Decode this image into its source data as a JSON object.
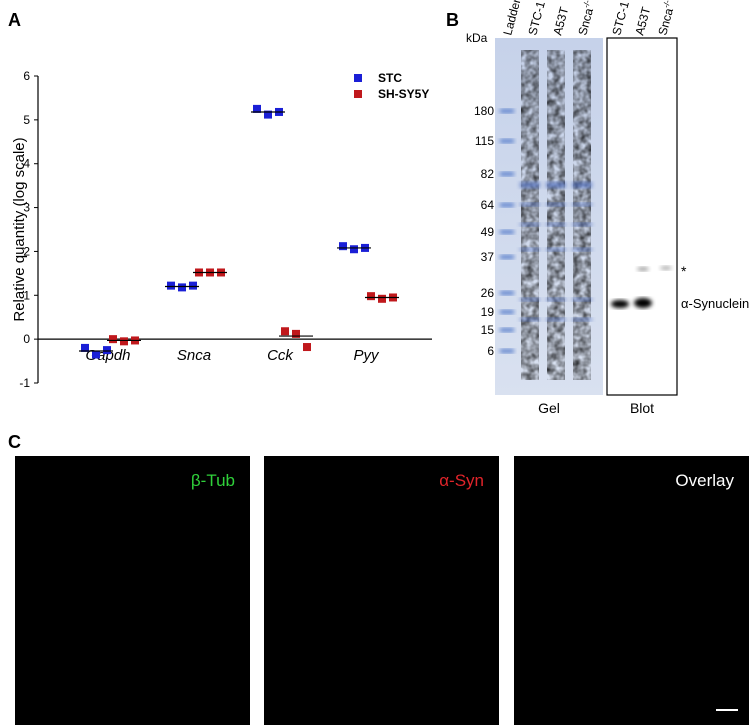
{
  "panel_labels": [
    "A",
    "B",
    "C"
  ],
  "chart_data": {
    "type": "scatter",
    "y_label": "Relative quantity (log scale)",
    "categories": [
      "Gapdh",
      "Snca",
      "Cck",
      "Pyy"
    ],
    "ylim": [
      -1,
      6
    ],
    "yticks": [
      -1,
      0,
      1,
      2,
      3,
      4,
      5,
      6
    ],
    "legend": "top-right",
    "series": [
      {
        "name": "STC",
        "color": "#1a1fd6",
        "values": [
          [
            -0.2,
            -0.35,
            -0.25
          ],
          [
            1.22,
            1.18,
            1.22
          ],
          [
            5.25,
            5.12,
            5.18
          ],
          [
            2.12,
            2.05,
            2.08
          ]
        ],
        "means": [
          -0.27,
          1.2,
          5.18,
          2.08
        ]
      },
      {
        "name": "SH-SY5Y",
        "color": "#c0181c",
        "values": [
          [
            0,
            -0.05,
            -0.03
          ],
          [
            1.52,
            1.52,
            1.52
          ],
          [
            0.18,
            0.12,
            -0.18
          ],
          [
            0.98,
            0.92,
            0.95
          ]
        ],
        "means": [
          -0.03,
          1.52,
          0.07,
          0.95
        ]
      }
    ]
  },
  "gel_blot": {
    "unit": "kDa",
    "gel_lanes": [
      {
        "text": "Ladder"
      },
      {
        "text": "STC-1"
      },
      {
        "text": "A53T"
      },
      {
        "text": "Snca",
        "sup": "-/-"
      }
    ],
    "blot_lanes": [
      {
        "text": "STC-1"
      },
      {
        "text": "A53T"
      },
      {
        "text": "Snca",
        "sup": "-/-"
      }
    ],
    "markers": [
      "180",
      "115",
      "82",
      "64",
      "49",
      "37",
      "26",
      "19",
      "15",
      "6"
    ],
    "gel_label": "Gel",
    "blot_label": "Blot",
    "band_label": "α-Synuclein",
    "asterisk": "*"
  },
  "micrographs": [
    {
      "label": "β-Tub",
      "color": "#2fd13a"
    },
    {
      "label": "α-Syn",
      "color": "#e0242a"
    },
    {
      "label": "Overlay",
      "color": "#ffffff"
    }
  ]
}
